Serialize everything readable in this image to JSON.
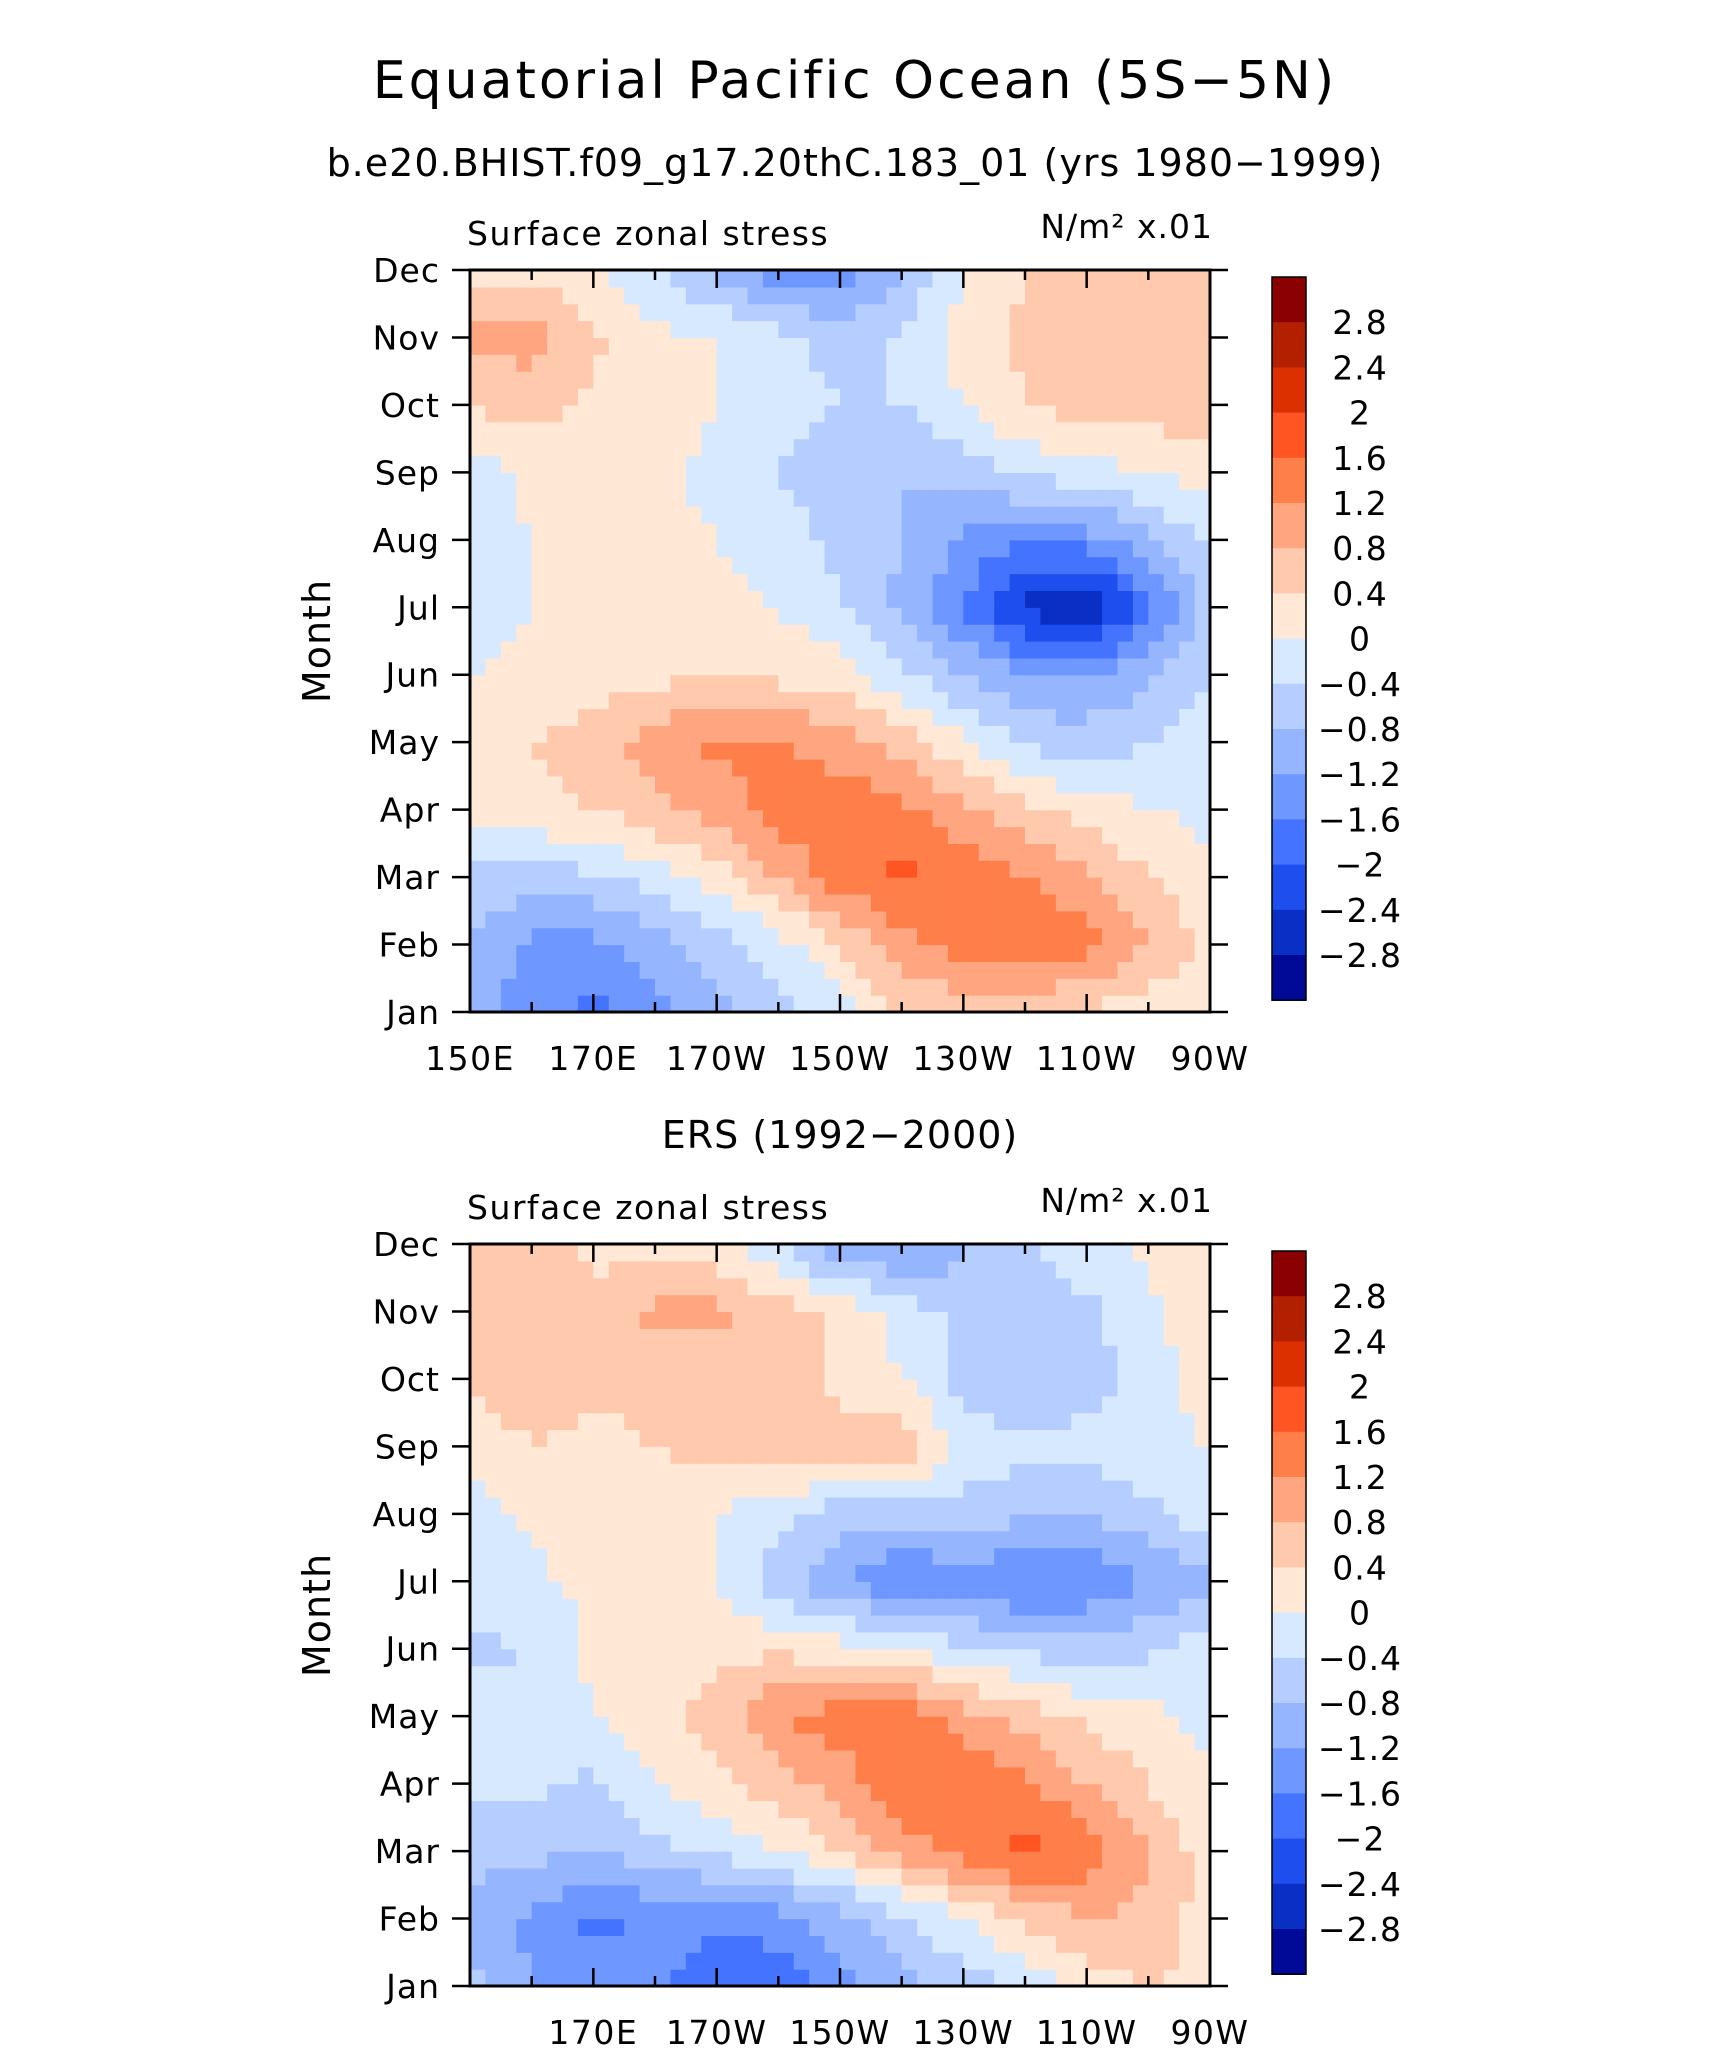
{
  "main_title": "Equatorial Pacific Ocean (5S−5N)",
  "panels": [
    {
      "id": "model",
      "subtitle": "b.e20.BHIST.f09_g17.20thC.183_01 (yrs 1980−1999)",
      "left_label": "Surface zonal stress",
      "units_label": "N/m² x.01",
      "ylabel": "Month",
      "xticks": [
        "150E",
        "170E",
        "170W",
        "150W",
        "130W",
        "110W",
        "90W"
      ],
      "yticks": [
        "Jan",
        "Feb",
        "Mar",
        "Apr",
        "May",
        "Jun",
        "Jul",
        "Aug",
        "Sep",
        "Oct",
        "Nov",
        "Dec"
      ]
    },
    {
      "id": "obs",
      "subtitle": "ERS (1992−2000)",
      "left_label": "Surface zonal stress",
      "units_label": "N/m² x.01",
      "ylabel": "Month",
      "xticks": [
        "",
        "170E",
        "170W",
        "150W",
        "130W",
        "110W",
        "90W"
      ],
      "yticks": [
        "Jan",
        "Feb",
        "Mar",
        "Apr",
        "May",
        "Jun",
        "Jul",
        "Aug",
        "Sep",
        "Oct",
        "Nov",
        "Dec"
      ]
    }
  ],
  "colorbar": {
    "labels": [
      "2.8",
      "2.4",
      "2",
      "1.6",
      "1.2",
      "0.8",
      "0.4",
      "0",
      "−0.4",
      "−0.8",
      "−1.2",
      "−1.6",
      "−2",
      "−2.4",
      "−2.8"
    ],
    "colors": [
      "#8B0000",
      "#B22000",
      "#DD3000",
      "#FF5522",
      "#FF7F4A",
      "#FFA580",
      "#FFC9AE",
      "#FFE8D6",
      "#D7E9FF",
      "#B6CEFF",
      "#95B5FF",
      "#6E97FF",
      "#4473FF",
      "#1E4EEE",
      "#0A2FC4",
      "#000A96"
    ]
  },
  "chart_data": [
    {
      "type": "heatmap",
      "title": "b.e20.BHIST.f09_g17.20thC.183_01 (yrs 1980−1999)",
      "xlabel": "",
      "ylabel": "Month",
      "variable": "Surface zonal stress",
      "units": "N/m² x.01",
      "x": [
        "150E",
        "160E",
        "170E",
        "180",
        "170W",
        "160W",
        "150W",
        "140W",
        "130W",
        "120W",
        "110W",
        "100W",
        "90W"
      ],
      "y": [
        "Jan",
        "Feb",
        "Mar",
        "Apr",
        "May",
        "Jun",
        "Jul",
        "Aug",
        "Sep",
        "Oct",
        "Nov",
        "Dec"
      ],
      "xlim": [
        "150E",
        "90W"
      ],
      "levels": [
        -2.8,
        -2.4,
        -2.0,
        -1.6,
        -1.2,
        -0.8,
        -0.4,
        0,
        0.4,
        0.8,
        1.2,
        1.6,
        2.0,
        2.4,
        2.8
      ],
      "z": [
        [
          -1.0,
          -1.4,
          -1.7,
          -1.4,
          -1.0,
          -0.6,
          -0.2,
          0.4,
          0.6,
          0.5,
          0.3,
          0.2,
          0.1
        ],
        [
          -0.9,
          -1.3,
          -1.3,
          -1.0,
          -0.6,
          -0.2,
          0.4,
          1.0,
          1.4,
          1.5,
          1.4,
          0.8,
          0.3
        ],
        [
          -0.5,
          -0.6,
          -0.5,
          -0.2,
          0.2,
          0.8,
          1.4,
          1.7,
          1.5,
          1.2,
          0.9,
          0.4,
          0.1
        ],
        [
          0.2,
          0.3,
          0.4,
          0.7,
          1.0,
          1.4,
          1.5,
          1.3,
          0.9,
          0.5,
          0.2,
          0.0,
          -0.1
        ],
        [
          0.3,
          0.4,
          0.6,
          1.0,
          1.3,
          1.2,
          1.0,
          0.6,
          0.1,
          -0.5,
          -0.6,
          -0.4,
          -0.2
        ],
        [
          0.0,
          0.1,
          0.2,
          0.3,
          0.3,
          0.3,
          0.2,
          -0.3,
          -0.8,
          -1.2,
          -1.2,
          -0.9,
          -0.4
        ],
        [
          -0.2,
          0.0,
          0.1,
          0.2,
          0.1,
          0.0,
          -0.4,
          -0.9,
          -1.6,
          -2.5,
          -2.9,
          -1.8,
          -0.6
        ],
        [
          -0.2,
          0.0,
          0.1,
          0.1,
          0.0,
          -0.2,
          -0.5,
          -0.8,
          -1.3,
          -1.6,
          -1.4,
          -0.9,
          -0.3
        ],
        [
          -0.2,
          0.1,
          0.1,
          0.1,
          -0.1,
          -0.4,
          -0.7,
          -0.8,
          -0.6,
          -0.3,
          -0.2,
          0.0,
          0.2
        ],
        [
          0.4,
          0.6,
          0.3,
          0.2,
          0.0,
          -0.2,
          -0.4,
          -0.4,
          0.0,
          0.4,
          0.6,
          0.6,
          0.6
        ],
        [
          0.9,
          1.0,
          0.5,
          0.1,
          0.0,
          -0.2,
          -0.6,
          -0.3,
          0.2,
          0.5,
          0.6,
          0.6,
          0.6
        ],
        [
          0.1,
          0.2,
          0.1,
          -0.4,
          -0.9,
          -1.5,
          -1.5,
          -0.8,
          0.0,
          0.4,
          0.5,
          0.5,
          0.4
        ]
      ]
    },
    {
      "type": "heatmap",
      "title": "ERS (1992−2000)",
      "xlabel": "",
      "ylabel": "Month",
      "variable": "Surface zonal stress",
      "units": "N/m² x.01",
      "x": [
        "150E",
        "160E",
        "170E",
        "180",
        "170W",
        "160W",
        "150W",
        "140W",
        "130W",
        "120W",
        "110W",
        "100W",
        "90W"
      ],
      "y": [
        "Jan",
        "Feb",
        "Mar",
        "Apr",
        "May",
        "Jun",
        "Jul",
        "Aug",
        "Sep",
        "Oct",
        "Nov",
        "Dec"
      ],
      "xlim": [
        "150E",
        "90W"
      ],
      "levels": [
        -2.8,
        -2.4,
        -2.0,
        -1.6,
        -1.2,
        -0.8,
        -0.4,
        0,
        0.4,
        0.8,
        1.2,
        1.6,
        2.0,
        2.4,
        2.8
      ],
      "z": [
        [
          -0.6,
          -1.2,
          -1.4,
          -1.6,
          -1.7,
          -1.9,
          -1.3,
          -1.0,
          -0.6,
          -0.3,
          0.2,
          0.4,
          0.3
        ],
        [
          -1.0,
          -1.3,
          -1.7,
          -1.5,
          -1.6,
          -1.4,
          -1.0,
          -0.5,
          0.0,
          0.5,
          0.8,
          0.7,
          0.2
        ],
        [
          -0.6,
          -0.7,
          -0.8,
          -0.5,
          -0.3,
          0.0,
          0.4,
          1.0,
          1.4,
          1.7,
          1.5,
          0.8,
          0.2
        ],
        [
          -0.3,
          -0.3,
          -0.5,
          0.0,
          0.3,
          0.6,
          1.0,
          1.5,
          1.6,
          1.3,
          0.8,
          0.4,
          0.0
        ],
        [
          -0.2,
          -0.2,
          0.0,
          0.2,
          0.6,
          1.2,
          1.4,
          1.5,
          1.0,
          0.6,
          0.3,
          0.1,
          -0.1
        ],
        [
          -0.5,
          -0.4,
          0.1,
          0.2,
          0.3,
          0.3,
          0.2,
          0.0,
          -0.3,
          -0.5,
          -0.6,
          -0.5,
          -0.2
        ],
        [
          -0.2,
          -0.1,
          0.1,
          0.2,
          0.0,
          -0.6,
          -1.2,
          -1.6,
          -1.4,
          -1.7,
          -1.6,
          -1.2,
          -0.9
        ],
        [
          -0.2,
          0.1,
          0.3,
          0.3,
          0.0,
          -0.3,
          -0.6,
          -0.7,
          -0.6,
          -0.7,
          -0.8,
          -0.5,
          -0.2
        ],
        [
          0.2,
          0.4,
          0.3,
          0.4,
          0.5,
          0.8,
          0.6,
          0.7,
          -0.1,
          -0.3,
          -0.2,
          -0.1,
          0.0
        ],
        [
          0.4,
          0.6,
          0.5,
          0.5,
          0.5,
          0.7,
          0.3,
          0.0,
          -0.6,
          -0.8,
          -0.6,
          -0.2,
          0.2
        ],
        [
          0.6,
          0.6,
          0.5,
          0.9,
          0.9,
          0.6,
          0.3,
          -0.2,
          -0.5,
          -0.7,
          -0.5,
          -0.1,
          0.3
        ],
        [
          0.6,
          0.6,
          0.3,
          0.3,
          0.1,
          -0.4,
          -1.2,
          -1.3,
          -0.9,
          -0.4,
          -0.1,
          0.1,
          0.2
        ]
      ]
    }
  ]
}
